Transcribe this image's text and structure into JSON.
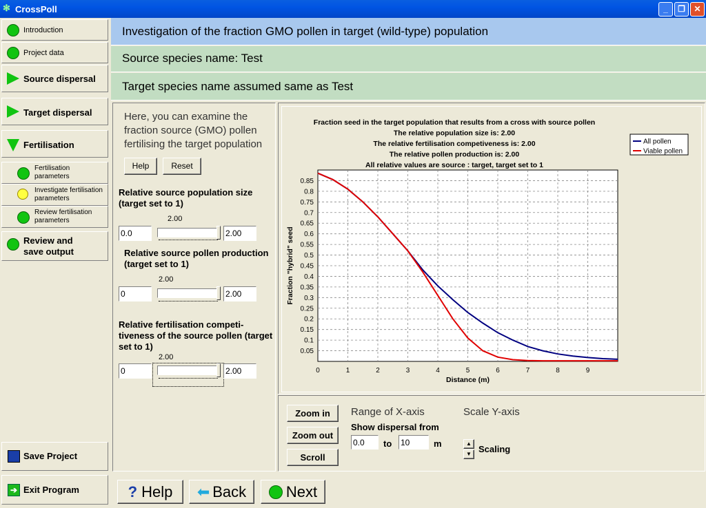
{
  "window": {
    "title": "CrossPoll"
  },
  "sidebar": {
    "introduction": "Introduction",
    "project_data": "Project data",
    "source_dispersal": "Source dispersal",
    "target_dispersal": "Target dispersal",
    "fertilisation": "Fertilisation",
    "fert_params": [
      "Fertilisation",
      "parameters"
    ],
    "investigate": [
      "Investigate fertilisation",
      "parameters"
    ],
    "review": [
      "Review fertilisation",
      "parameters"
    ],
    "review_save": [
      "Review and",
      "save output"
    ],
    "save_project": "Save Project",
    "exit_program": "Exit Program"
  },
  "header": {
    "title": "Investigation of the fraction GMO pollen in target (wild-type) population",
    "source": "Source species name: Test",
    "target": "Target species name assumed same as Test"
  },
  "left": {
    "intro": "Here, you can examine the fraction source (GMO) pollen fertilising the target population",
    "help": "Help",
    "reset": "Reset",
    "p1": {
      "label": "Relative source population size (target set to 1)",
      "min": "0.0",
      "value": "2.00",
      "out": "2.00",
      "level": 1.0
    },
    "p2": {
      "label": "Relative source pollen production (target set to 1)",
      "min": "0",
      "value": "2.00",
      "out": "2.00",
      "level": 1.0
    },
    "p3": {
      "label": "Relative fertilisation competi-tiveness of the source pollen (target set to 1)",
      "min": "0",
      "value": "2.00",
      "out": "2.00",
      "level": 1.0
    }
  },
  "chart_data": {
    "type": "line",
    "title": [
      "Fraction seed in the target population that results from a cross with source pollen",
      "The relative population size is: 2.00",
      "The relative fertilisation competiveness is: 2.00",
      "The relative pollen production is: 2.00",
      "All relative values are source : target, target set to 1"
    ],
    "xlabel": "Distance (m)",
    "ylabel": "Fraction \"hybrid\" seed",
    "xlim": [
      0,
      10
    ],
    "ylim": [
      0,
      0.9
    ],
    "xticks": [
      "0",
      "1",
      "2",
      "3",
      "4",
      "5",
      "6",
      "7",
      "8",
      "9"
    ],
    "yticks": [
      "0.05",
      "0.1",
      "0.15",
      "0.2",
      "0.25",
      "0.3",
      "0.35",
      "0.4",
      "0.45",
      "0.5",
      "0.55",
      "0.6",
      "0.65",
      "0.7",
      "0.75",
      "0.8",
      "0.85"
    ],
    "legend": "top-right",
    "series": [
      {
        "name": "All pollen",
        "color": "#000080",
        "x": [
          0,
          0.5,
          1,
          1.5,
          2,
          2.5,
          3,
          3.5,
          4,
          4.5,
          5,
          5.5,
          6,
          6.5,
          7,
          7.5,
          8,
          8.5,
          9,
          9.5,
          10
        ],
        "y": [
          0.885,
          0.855,
          0.81,
          0.75,
          0.68,
          0.6,
          0.52,
          0.43,
          0.355,
          0.29,
          0.23,
          0.18,
          0.135,
          0.1,
          0.07,
          0.05,
          0.035,
          0.025,
          0.018,
          0.013,
          0.01
        ]
      },
      {
        "name": "Viable pollen",
        "color": "#e00000",
        "x": [
          0,
          0.5,
          1,
          1.5,
          2,
          2.5,
          3,
          3.5,
          4,
          4.5,
          5,
          5.5,
          6,
          6.5,
          7,
          7.5,
          8,
          8.5,
          9,
          9.5,
          10
        ],
        "y": [
          0.885,
          0.855,
          0.81,
          0.75,
          0.68,
          0.6,
          0.52,
          0.42,
          0.31,
          0.2,
          0.11,
          0.05,
          0.02,
          0.008,
          0.004,
          0.003,
          0.003,
          0.003,
          0.003,
          0.003,
          0.003
        ]
      }
    ]
  },
  "controls": {
    "zoom_in": "Zoom in",
    "zoom_out": "Zoom out",
    "scroll": "Scroll",
    "range_x": "Range of X-axis",
    "show_dispersal": "Show dispersal from",
    "from": "0.0",
    "to_label": "to",
    "to": "10",
    "unit": "m",
    "scale_y": "Scale Y-axis",
    "scaling": "Scaling"
  },
  "nav": {
    "help": "Help",
    "back": "Back",
    "next": "Next"
  }
}
